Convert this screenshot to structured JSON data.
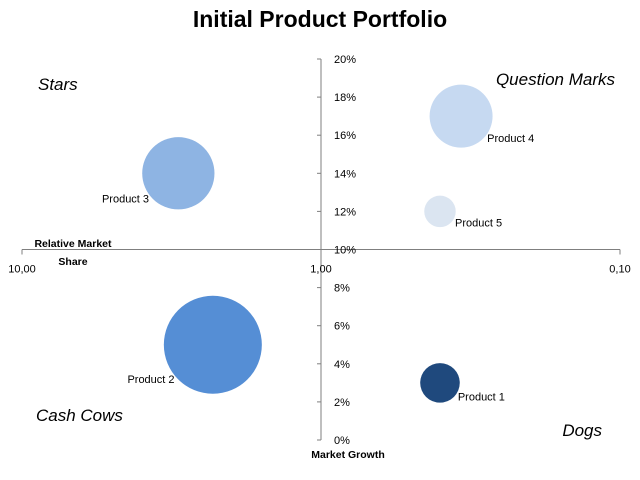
{
  "chart_data": {
    "type": "scatter",
    "subtype": "bubble",
    "title": "Initial Product Portfolio",
    "xlabel": "Relative Market Share",
    "ylabel": "Market Growth",
    "x_scale": "log",
    "x_reversed": true,
    "xlim": [
      10,
      0.1
    ],
    "x_ticks": [
      "10,00",
      "1,00",
      "0,10"
    ],
    "ylim": [
      0,
      0.2
    ],
    "y_ticks": [
      "0%",
      "2%",
      "4%",
      "6%",
      "8%",
      "10%",
      "12%",
      "14%",
      "16%",
      "18%",
      "20%"
    ],
    "axis_crossing": {
      "x": 1,
      "y": 0.1
    },
    "grid": false,
    "quadrants": {
      "top_left": "Stars",
      "top_right": "Question Marks",
      "bottom_left": "Cash Cows",
      "bottom_right": "Dogs"
    },
    "series": [
      {
        "name": "Product 1",
        "x": 0.4,
        "y": 0.03,
        "size": 0.15,
        "color": "#1F497D"
      },
      {
        "name": "Product 2",
        "x": 2.3,
        "y": 0.05,
        "size": 0.92,
        "color": "#558ED5"
      },
      {
        "name": "Product 3",
        "x": 3.0,
        "y": 0.14,
        "size": 0.5,
        "color": "#8EB4E3"
      },
      {
        "name": "Product 4",
        "x": 0.34,
        "y": 0.17,
        "size": 0.38,
        "color": "#C6D9F1"
      },
      {
        "name": "Product 5",
        "x": 0.4,
        "y": 0.12,
        "size": 0.095,
        "color": "#DBE5F1"
      }
    ]
  },
  "colors": {
    "axis": "#7F7F7F",
    "text": "#000000"
  }
}
